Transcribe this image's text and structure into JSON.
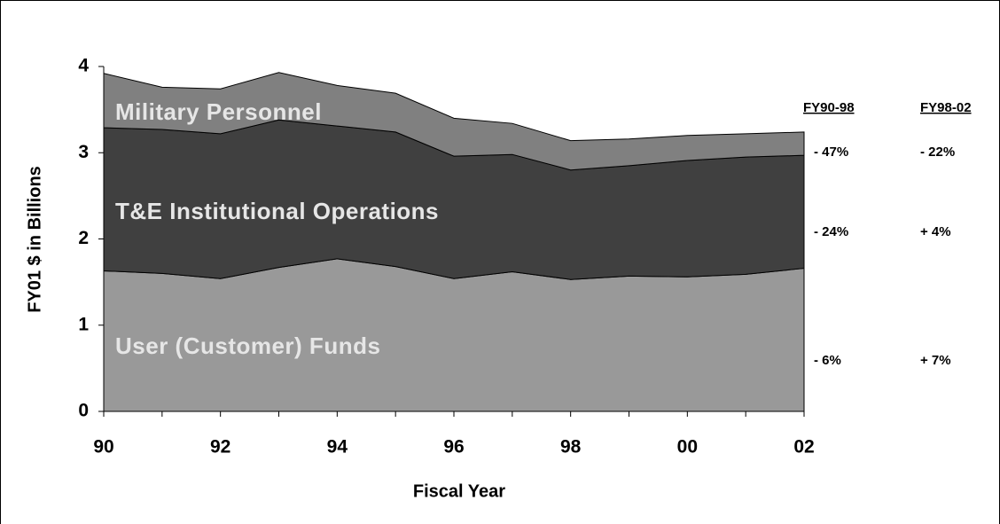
{
  "chart_data": {
    "type": "stacked_area",
    "x_label": "Fiscal Year",
    "y_label": "FY01 $ in Billions",
    "categories": [
      "90",
      null,
      "92",
      null,
      "94",
      null,
      "96",
      null,
      "98",
      null,
      "00",
      null,
      "02"
    ],
    "series": [
      {
        "name": "User (Customer) Funds",
        "color": "#999999",
        "values": [
          1.63,
          1.6,
          1.54,
          1.67,
          1.77,
          1.68,
          1.54,
          1.62,
          1.53,
          1.57,
          1.56,
          1.59,
          1.66
        ]
      },
      {
        "name": "T&E Institutional Operations",
        "color": "#404040",
        "values": [
          1.66,
          1.67,
          1.68,
          1.71,
          1.54,
          1.56,
          1.42,
          1.36,
          1.27,
          1.28,
          1.35,
          1.36,
          1.31
        ]
      },
      {
        "name": "Military Personnel",
        "color": "#808080",
        "values": [
          0.63,
          0.49,
          0.52,
          0.55,
          0.47,
          0.45,
          0.44,
          0.36,
          0.34,
          0.31,
          0.29,
          0.27,
          0.27
        ]
      }
    ],
    "ylim": [
      0,
      4
    ],
    "yticks": [
      0,
      1,
      2,
      3,
      4
    ],
    "changes": {
      "headers": [
        "FY90-98",
        "FY98-02"
      ],
      "rows": [
        [
          "- 47%",
          "- 22%"
        ],
        [
          "- 24%",
          "+ 4%"
        ],
        [
          "- 6%",
          "+ 7%"
        ]
      ]
    }
  }
}
